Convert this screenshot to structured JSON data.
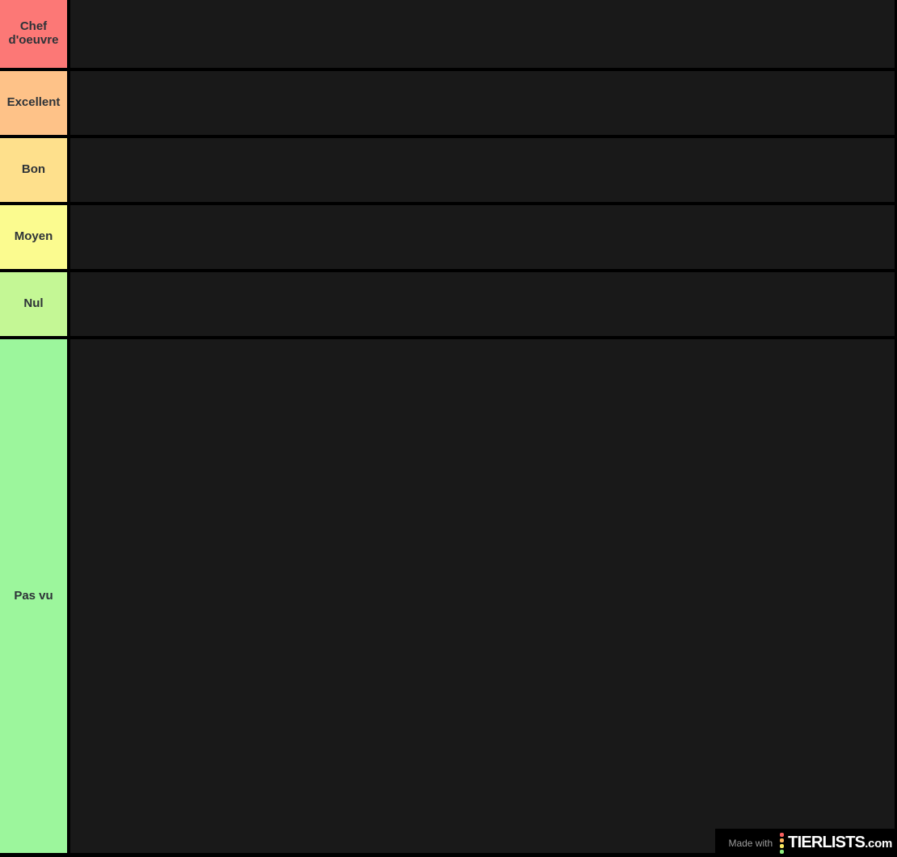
{
  "tiers": [
    {
      "label": "Chef d'oeuvre",
      "color": "#FC7876"
    },
    {
      "label": "Excellent",
      "color": "#FEC288"
    },
    {
      "label": "Bon",
      "color": "#FEE08C"
    },
    {
      "label": "Moyen",
      "color": "#FBFB8F"
    },
    {
      "label": "Nul",
      "color": "#C4F795"
    },
    {
      "label": "Pas vu",
      "color": "#9CF69C"
    }
  ],
  "watermark": {
    "prefix": "Made with",
    "brand": "TIERLISTS",
    "suffix": ".com",
    "logo_dot_colors": [
      "#F96060",
      "#FDB45F",
      "#F9E961",
      "#90EE7E"
    ]
  },
  "colors": {
    "page_background": "#000000",
    "row_background": "#191919",
    "label_text": "#2E3338",
    "watermark_background": "#000000",
    "watermark_prefix_text": "#9B9B9B",
    "watermark_brand_text": "#FFFFFF"
  }
}
